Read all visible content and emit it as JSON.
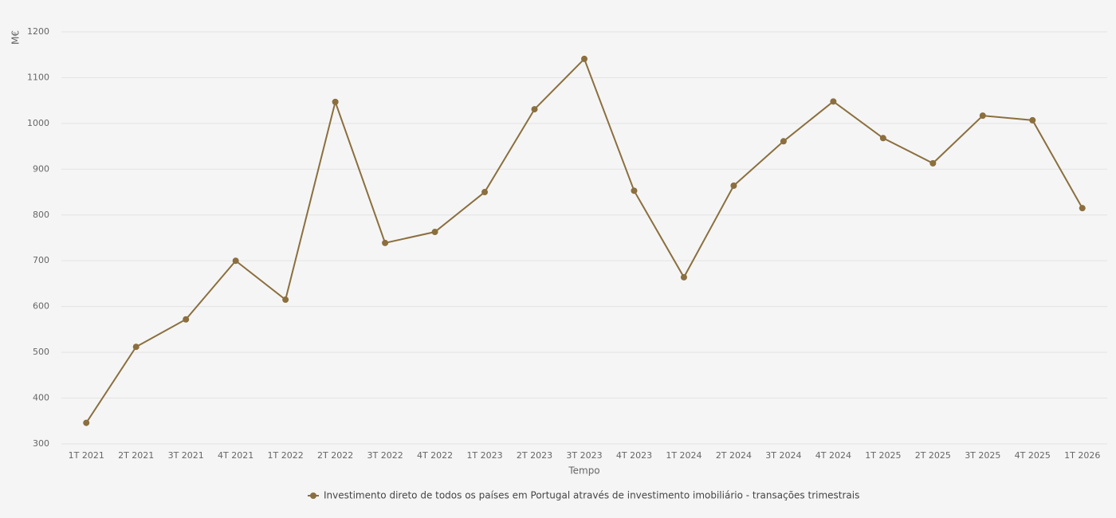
{
  "chart_data": {
    "type": "line",
    "y_label": "M€",
    "x_label": "Tempo",
    "categories": [
      "1T 2021",
      "2T 2021",
      "3T 2021",
      "4T 2021",
      "1T 2022",
      "2T 2022",
      "3T 2022",
      "4T 2022",
      "1T 2023",
      "2T 2023",
      "3T 2023",
      "4T 2023",
      "1T 2024",
      "2T 2024",
      "3T 2024",
      "4T 2024",
      "1T 2025",
      "2T 2025",
      "3T 2025",
      "4T 2025",
      "1T 2026"
    ],
    "series": [
      {
        "name": "Investimento direto de todos os países em Portugal através de investimento imobiliário - transações trimestrais",
        "color": "#8b6f3e",
        "values": [
          346,
          512,
          572,
          700,
          615,
          1047,
          739,
          763,
          850,
          1031,
          1141,
          853,
          664,
          864,
          961,
          1048,
          968,
          913,
          1017,
          1007,
          815
        ]
      }
    ],
    "ylim": [
      300,
      1200
    ],
    "yticks": [
      300,
      400,
      500,
      600,
      700,
      800,
      900,
      1000,
      1100,
      1200
    ],
    "grid": true
  }
}
